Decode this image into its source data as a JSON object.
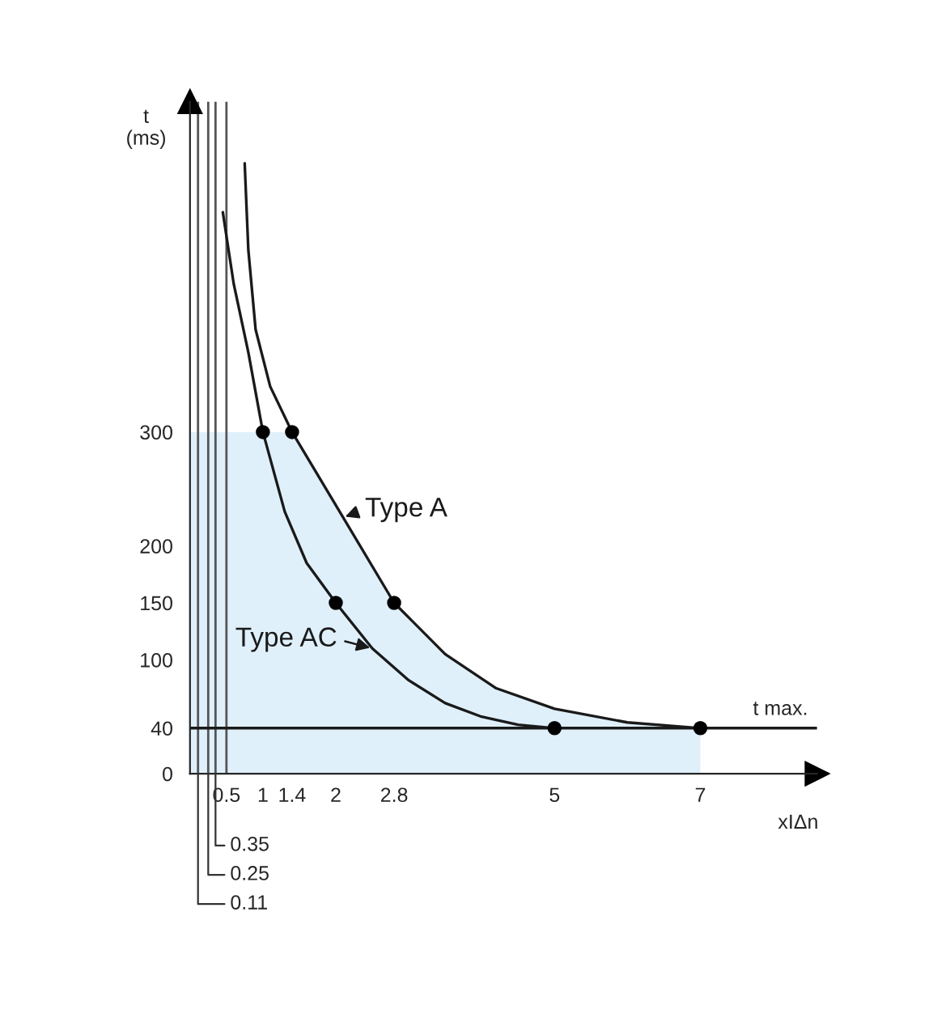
{
  "chart_data": {
    "type": "line",
    "xlabel": "xIΔn",
    "ylabel": "t\n(ms)",
    "xlim": [
      0,
      8.6
    ],
    "ylim": [
      0,
      590
    ],
    "xticks": [
      0.5,
      1,
      1.4,
      2,
      2.8,
      5,
      7
    ],
    "yticks": [
      0,
      40,
      100,
      150,
      200,
      300
    ],
    "series": [
      {
        "type": "area",
        "color": "#dff0fb",
        "x": [
          0,
          1.4,
          2.1,
          2.8,
          3.5,
          4.2,
          5,
          6,
          7
        ],
        "values": [
          300,
          300,
          225,
          150,
          105,
          75,
          57,
          45,
          40
        ]
      },
      {
        "name": "Type A",
        "color": "#1a1a1a",
        "x": [
          0.75,
          0.8,
          0.9,
          1.1,
          1.4,
          2.1,
          2.8,
          3.5,
          4.2,
          5,
          6,
          7
        ],
        "values": [
          536,
          460,
          390,
          340,
          300,
          225,
          150,
          105,
          75,
          57,
          45,
          40
        ]
      },
      {
        "name": "Type AC",
        "color": "#1a1a1a",
        "x": [
          0.45,
          0.6,
          0.8,
          1,
          1.3,
          1.6,
          2,
          2.5,
          3,
          3.5,
          4,
          4.5,
          5
        ],
        "values": [
          493,
          430,
          370,
          300,
          230,
          185,
          150,
          110,
          82,
          62,
          50,
          43,
          40
        ]
      },
      {
        "type": "scatter",
        "color": "#000000",
        "x": [
          1,
          1.4,
          2,
          2.8,
          5,
          7
        ],
        "values": [
          300,
          300,
          150,
          150,
          40,
          40
        ]
      }
    ],
    "ref_lines": [
      {
        "axis": "x",
        "value": 0.11,
        "color": "#555555"
      },
      {
        "axis": "x",
        "value": 0.25,
        "color": "#555555"
      },
      {
        "axis": "x",
        "value": 0.35,
        "color": "#555555"
      },
      {
        "axis": "x",
        "value": 0.5,
        "color": "#555555"
      },
      {
        "axis": "y",
        "value": 40,
        "label": "t max.",
        "color": "#1a1a1a"
      }
    ],
    "annotations": [
      {
        "text": "0.35",
        "x": 0.35,
        "y": 0
      },
      {
        "text": "0.25",
        "x": 0.25,
        "y": 0
      },
      {
        "text": "0.11",
        "x": 0.11,
        "y": 0
      }
    ],
    "grid": false
  }
}
